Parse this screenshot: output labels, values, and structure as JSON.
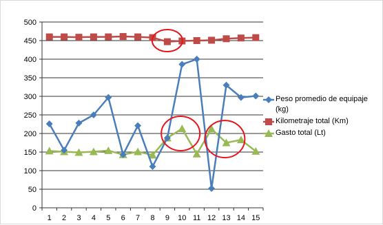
{
  "chart_data": {
    "type": "line",
    "categories": [
      "1",
      "2",
      "3",
      "4",
      "5",
      "6",
      "7",
      "8",
      "9",
      "10",
      "11",
      "12",
      "13",
      "14",
      "15"
    ],
    "ylim": [
      0,
      500
    ],
    "yticks": [
      0,
      50,
      100,
      150,
      200,
      250,
      300,
      350,
      400,
      450,
      500
    ],
    "grid": true,
    "legend_position": "right",
    "series": [
      {
        "name": "Peso promedio de equipaje (kg)",
        "color": "#4a7ebb",
        "marker": "diamond",
        "values": [
          226,
          155,
          228,
          250,
          297,
          143,
          221,
          111,
          188,
          386,
          400,
          52,
          330,
          297,
          301
        ]
      },
      {
        "name": "Kilometraje total (Km)",
        "color": "#be4b48",
        "marker": "square",
        "values": [
          460,
          460,
          459,
          460,
          460,
          461,
          460,
          458,
          447,
          449,
          450,
          451,
          455,
          457,
          458
        ]
      },
      {
        "name": "Gasto total (Lt)",
        "color": "#98b954",
        "marker": "triangle",
        "values": [
          153,
          151,
          149,
          151,
          154,
          143,
          151,
          142,
          188,
          213,
          145,
          212,
          175,
          183,
          152
        ]
      }
    ],
    "annotations": [
      {
        "type": "circle",
        "color": "#e8141b",
        "center_x": 9,
        "center_y": 450,
        "label": ""
      },
      {
        "type": "circle",
        "color": "#e8141b",
        "center_x": 9.9,
        "center_y": 200,
        "label": ""
      },
      {
        "type": "circle",
        "color": "#e8141b",
        "center_x": 12.9,
        "center_y": 185,
        "label": ""
      }
    ]
  }
}
